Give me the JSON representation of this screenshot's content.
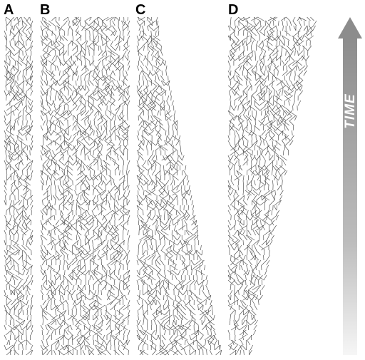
{
  "panels": [
    {
      "label": "A"
    },
    {
      "label": "B"
    },
    {
      "label": "C"
    },
    {
      "label": "D"
    }
  ],
  "time_axis": {
    "label": "TIME",
    "direction": "up"
  },
  "colors": {
    "lineage_stroke": "#555555",
    "arrow_dark": "#8a8a8a",
    "arrow_light": "#f4f4f4",
    "panel_label": "#000000"
  }
}
